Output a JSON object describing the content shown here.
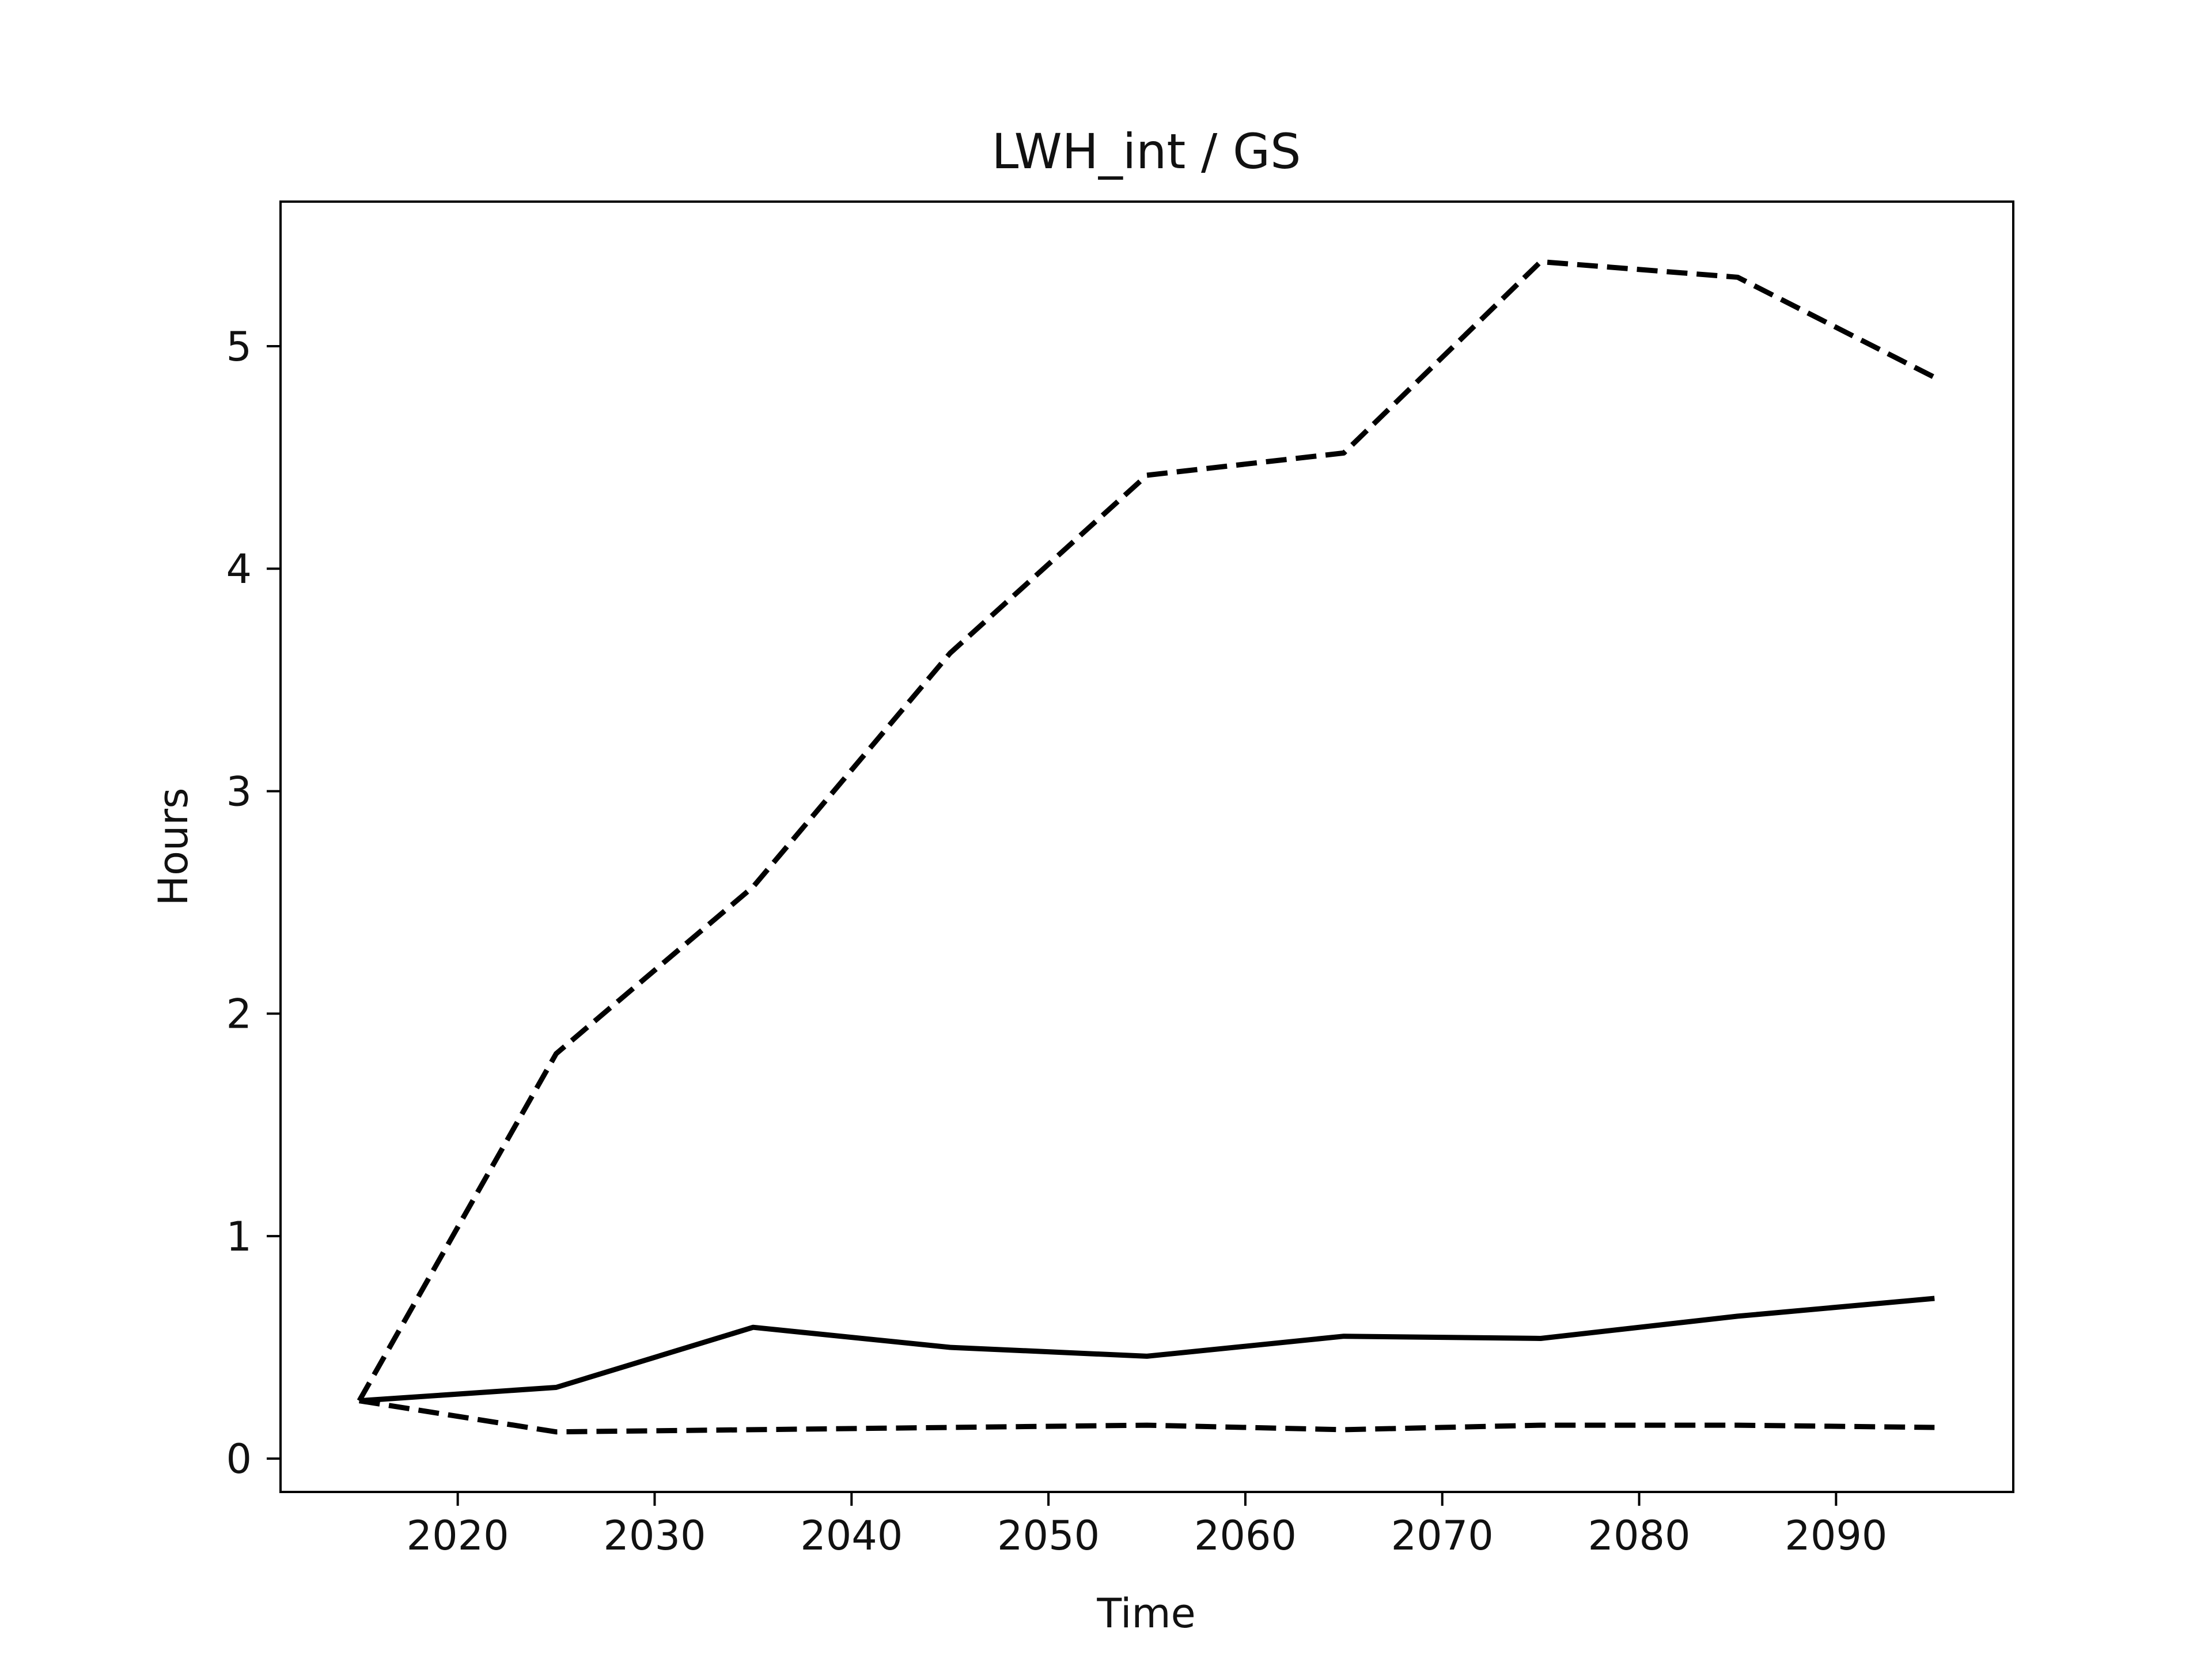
{
  "chart_data": {
    "type": "line",
    "title": "LWH_int / GS",
    "xlabel": "Time",
    "ylabel": "Hours",
    "xlim": [
      2011,
      2099
    ],
    "ylim": [
      -0.15,
      5.65
    ],
    "x_ticks": [
      2020,
      2030,
      2040,
      2050,
      2060,
      2070,
      2080,
      2090
    ],
    "y_ticks": [
      0,
      1,
      2,
      3,
      4,
      5
    ],
    "grid": false,
    "legend": "none",
    "x": [
      2015,
      2025,
      2035,
      2045,
      2055,
      2065,
      2075,
      2085,
      2095
    ],
    "series": [
      {
        "style": "solid",
        "color": "#000000",
        "values": [
          0.26,
          0.32,
          0.59,
          0.5,
          0.46,
          0.55,
          0.54,
          0.64,
          0.72
        ]
      },
      {
        "style": "dashed",
        "color": "#000000",
        "values": [
          0.26,
          1.82,
          2.57,
          3.62,
          4.42,
          4.52,
          5.38,
          5.31,
          4.86
        ]
      },
      {
        "style": "dashed",
        "color": "#000000",
        "values": [
          0.26,
          0.12,
          0.13,
          0.14,
          0.15,
          0.13,
          0.15,
          0.15,
          0.14
        ]
      }
    ]
  }
}
